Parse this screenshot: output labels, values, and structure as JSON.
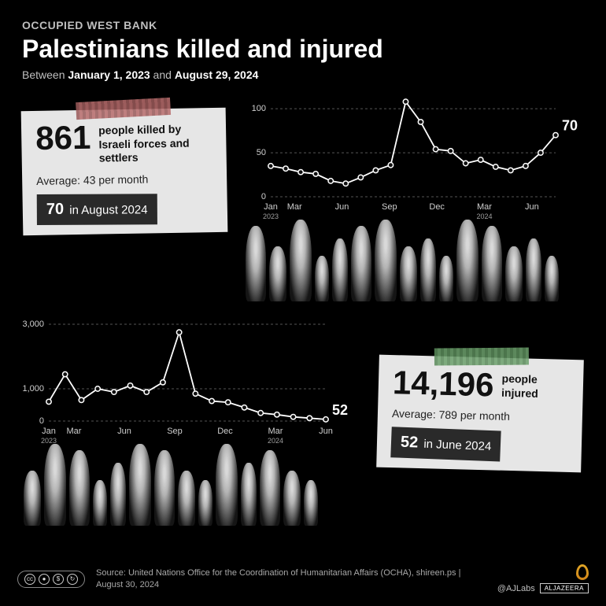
{
  "header": {
    "overline": "OCCUPIED WEST BANK",
    "title": "Palestinians killed and injured",
    "daterange_prefix": "Between ",
    "date_start": "January 1, 2023",
    "daterange_mid": " and ",
    "date_end": "August 29, 2024"
  },
  "killed": {
    "stat_number": "861",
    "stat_desc": "people killed by Israeli forces and settlers",
    "average_label": "Average: 43 per month",
    "highlight_value": "70",
    "highlight_period": " in August 2024",
    "tape_color": "#9b5a5a",
    "highlight_bg": "#2a2a2a",
    "chart": {
      "type": "line",
      "ylim": [
        0,
        110
      ],
      "yticks": [
        0,
        50,
        100
      ],
      "xlabels": [
        "Jan",
        "Mar",
        "",
        "Jun",
        "",
        "Sep",
        "",
        "Dec",
        "",
        "Mar",
        "",
        "Jun",
        ""
      ],
      "xsub": [
        "2023",
        "",
        "",
        "",
        "",
        "",
        "",
        "",
        "",
        "2024",
        "",
        "",
        ""
      ],
      "values": [
        35,
        32,
        28,
        26,
        18,
        15,
        22,
        30,
        36,
        108,
        85,
        54,
        52,
        38,
        42,
        34,
        30,
        35,
        50,
        70
      ],
      "end_label": "70",
      "line_color": "#ffffff",
      "marker_fill": "#111111",
      "marker_stroke": "#ffffff",
      "marker_radius": 3.2,
      "grid_color": "#555555",
      "axis_font_color": "#cfcfcf",
      "axis_sub_color": "#9e9e9e",
      "line_width": 1.8,
      "background": "#000000"
    }
  },
  "injured": {
    "stat_number": "14,196",
    "stat_desc": "people injured",
    "average_label": "Average: 789 per month",
    "highlight_value": "52",
    "highlight_period": " in June 2024",
    "tape_color": "#5a8a5a",
    "highlight_bg": "#2a2a2a",
    "chart": {
      "type": "line",
      "ylim": [
        0,
        3000
      ],
      "yticks": [
        0,
        1000,
        3000
      ],
      "xlabels": [
        "Jan",
        "Mar",
        "",
        "Jun",
        "",
        "Sep",
        "",
        "Dec",
        "",
        "Mar",
        "",
        "Jun"
      ],
      "xsub": [
        "2023",
        "",
        "",
        "",
        "",
        "",
        "",
        "",
        "",
        "2024",
        "",
        ""
      ],
      "values": [
        600,
        1450,
        650,
        1000,
        900,
        1100,
        900,
        1200,
        2750,
        850,
        620,
        580,
        420,
        250,
        200,
        130,
        90,
        52
      ],
      "end_label": "52",
      "line_color": "#ffffff",
      "marker_fill": "#111111",
      "marker_stroke": "#ffffff",
      "marker_radius": 3.2,
      "grid_color": "#555555",
      "axis_font_color": "#cfcfcf",
      "axis_sub_color": "#9e9e9e",
      "line_width": 1.8,
      "background": "#000000"
    }
  },
  "footer": {
    "cc_label": "BY NC SA",
    "source": "Source: United Nations Office for the Coordination of Humanitarian Affairs (OCHA), shireen.ps | August 30, 2024",
    "handle": "@AJLabs",
    "brand": "ALJAZEERA"
  },
  "colors": {
    "background": "#000000",
    "text": "#ffffff",
    "muted": "#bfbfbf",
    "box_bg": "#e6e6e6",
    "box_text": "#111111"
  }
}
